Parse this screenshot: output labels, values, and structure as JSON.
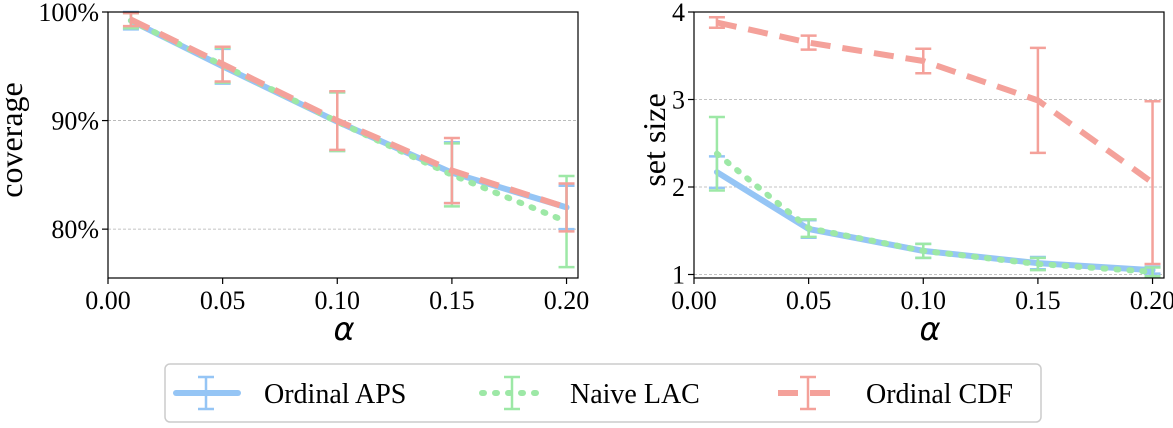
{
  "chart_data": [
    {
      "type": "line",
      "panel": "left",
      "title": "",
      "xlabel": "α",
      "ylabel": "coverage",
      "xlim": [
        0.0,
        0.205
      ],
      "ylim": [
        0.755,
        1.0
      ],
      "grid": "y-dashed",
      "x_ticks": [
        0.0,
        0.05,
        0.1,
        0.15,
        0.2
      ],
      "x_tick_labels": [
        "0.00",
        "0.05",
        "0.10",
        "0.15",
        "0.20"
      ],
      "y_ticks": [
        0.8,
        0.9,
        1.0
      ],
      "y_tick_labels": [
        "80%",
        "90%",
        "100%"
      ],
      "x": [
        0.01,
        0.05,
        0.1,
        0.15,
        0.2
      ],
      "series": [
        {
          "name": "Ordinal APS",
          "values": [
            0.992,
            0.95,
            0.899,
            0.852,
            0.82
          ],
          "err": [
            0.008,
            0.016,
            0.027,
            0.028,
            0.02
          ],
          "color": "#95c5f5",
          "dash": "solid"
        },
        {
          "name": "Naive LAC",
          "values": [
            0.992,
            0.951,
            0.899,
            0.85,
            0.807
          ],
          "err": [
            0.007,
            0.016,
            0.027,
            0.029,
            0.042
          ],
          "color": "#9de8a6",
          "dash": "dotted"
        },
        {
          "name": "Ordinal CDF",
          "values": [
            0.993,
            0.952,
            0.9,
            0.854,
            0.82
          ],
          "err": [
            0.006,
            0.016,
            0.027,
            0.03,
            0.022
          ],
          "color": "#f4a19a",
          "dash": "dashed"
        }
      ]
    },
    {
      "type": "line",
      "panel": "right",
      "title": "",
      "xlabel": "α",
      "ylabel": "set size",
      "xlim": [
        0.0,
        0.205
      ],
      "ylim": [
        0.96,
        4.0
      ],
      "grid": "y-dashed",
      "x_ticks": [
        0.0,
        0.05,
        0.1,
        0.15,
        0.2
      ],
      "x_tick_labels": [
        "0.00",
        "0.05",
        "0.10",
        "0.15",
        "0.20"
      ],
      "y_ticks": [
        1,
        2,
        3,
        4
      ],
      "y_tick_labels": [
        "1",
        "2",
        "3",
        "4"
      ],
      "x": [
        0.01,
        0.05,
        0.1,
        0.15,
        0.2
      ],
      "series": [
        {
          "name": "Ordinal APS",
          "values": [
            2.17,
            1.52,
            1.27,
            1.13,
            1.05
          ],
          "err": [
            0.18,
            0.1,
            0.08,
            0.07,
            0.04
          ],
          "color": "#95c5f5",
          "dash": "solid"
        },
        {
          "name": "Naive LAC",
          "values": [
            2.38,
            1.53,
            1.27,
            1.12,
            1.03
          ],
          "err": [
            0.42,
            0.1,
            0.08,
            0.07,
            0.05
          ],
          "color": "#9de8a6",
          "dash": "dotted"
        },
        {
          "name": "Ordinal CDF",
          "values": [
            3.88,
            3.65,
            3.44,
            2.99,
            2.05
          ],
          "err": [
            0.06,
            0.08,
            0.14,
            0.6,
            0.93
          ],
          "color": "#f4a19a",
          "dash": "dashed"
        }
      ]
    }
  ],
  "legend": [
    {
      "label": "Ordinal APS",
      "color": "#95c5f5",
      "dash": "solid"
    },
    {
      "label": "Naive LAC",
      "color": "#9de8a6",
      "dash": "dotted"
    },
    {
      "label": "Ordinal CDF",
      "color": "#f4a19a",
      "dash": "dashed"
    }
  ]
}
